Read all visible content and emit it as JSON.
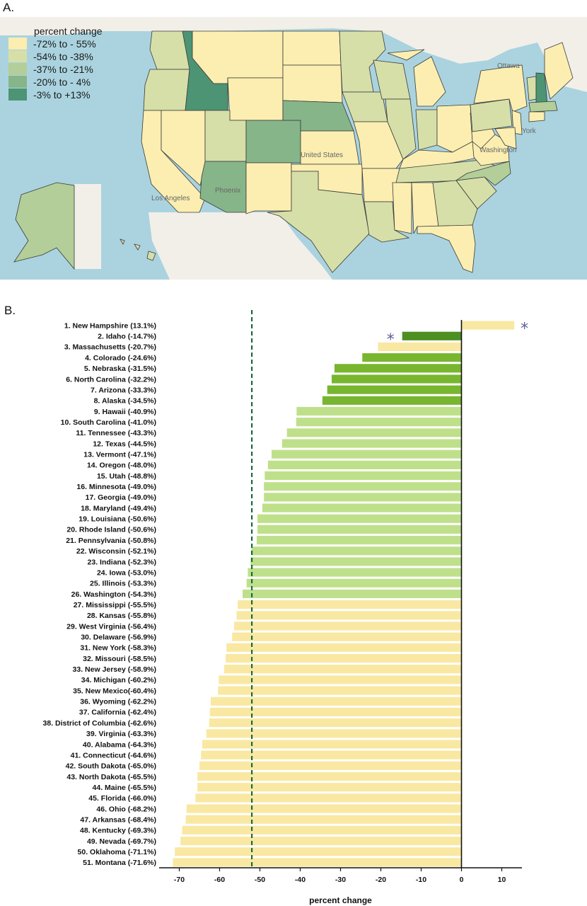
{
  "panels": {
    "a_label": "A.",
    "b_label": "B."
  },
  "map": {
    "legend_title": "percent change",
    "legend": [
      {
        "label": "-72% to - 55%",
        "color": "#fbeeb0"
      },
      {
        "label": "-54% to -38%",
        "color": "#d6dfa8"
      },
      {
        "label": "-37% to -21%",
        "color": "#b3ce98"
      },
      {
        "label": "-20% to - 4%",
        "color": "#86b589"
      },
      {
        "label": "-3% to +13%",
        "color": "#4c9474"
      }
    ],
    "basemap_labels": {
      "ottawa": "Ottawa",
      "new_york": "York",
      "washington": "Washington",
      "united_states": "United States",
      "phoenix": "Phoenix",
      "los_angeles": "Los Angeles"
    },
    "colors": {
      "ocean": "#aad3df",
      "land": "#f2efe9"
    }
  },
  "chart_data": {
    "type": "bar",
    "orientation": "horizontal",
    "categories": [
      "1. New Hampshire (13.1%)",
      "2. Idaho (-14.7%)",
      "3. Massachusetts (-20.7%)",
      "4. Colorado (-24.6%)",
      "5. Nebraska (-31.5%)",
      "6. North Carolina (-32.2%)",
      "7. Arizona (-33.3%)",
      "8. Alaska (-34.5%)",
      "9. Hawaii (-40.9%)",
      "10. South Carolina (-41.0%)",
      "11. Tennessee (-43.3%)",
      "12. Texas (-44.5%)",
      "13. Vermont (-47.1%)",
      "14. Oregon (-48.0%)",
      "15. Utah (-48.8%)",
      "16. Minnesota (-49.0%)",
      "17. Georgia (-49.0%)",
      "18. Maryland (-49.4%)",
      "19. Louisiana (-50.6%)",
      "20. Rhode Island (-50.6%)",
      "21. Pennsylvania (-50.8%)",
      "22. Wisconsin (-52.1%)",
      "23. Indiana (-52.3%)",
      "24. Iowa (-53.0%)",
      "25. Illinois (-53.3%)",
      "26. Washington (-54.3%)",
      "27. Mississippi (-55.5%)",
      "28. Kansas (-55.8%)",
      "29. West Virginia (-56.4%)",
      "30. Delaware (-56.9%)",
      "31. New York (-58.3%)",
      "32. Missouri (-58.5%)",
      "33. New Jersey (-58.9%)",
      "34. Michigan (-60.2%)",
      "35. New Mexico(-60.4%)",
      "36. Wyoming (-62.2%)",
      "37. California (-62.4%)",
      "38. District of Columbia (-62.6%)",
      "39. Virginia (-63.3%)",
      "40. Alabama (-64.3%)",
      "41. Connecticut (-64.6%)",
      "42. South Dakota (-65.0%)",
      "43. North Dakota (-65.5%)",
      "44. Maine (-65.5%)",
      "45. Florida (-66.0%)",
      "46. Ohio (-68.2%)",
      "47. Arkansas (-68.4%)",
      "48. Kentucky (-69.3%)",
      "49. Nevada (-69.7%)",
      "50. Oklahoma (-71.1%)",
      "51. Montana (-71.6%)"
    ],
    "values": [
      13.1,
      -14.7,
      -20.7,
      -24.6,
      -31.5,
      -32.2,
      -33.3,
      -34.5,
      -40.9,
      -41.0,
      -43.3,
      -44.5,
      -47.1,
      -48.0,
      -48.8,
      -49.0,
      -49.0,
      -49.4,
      -50.6,
      -50.6,
      -50.8,
      -52.1,
      -52.3,
      -53.0,
      -53.3,
      -54.3,
      -55.5,
      -55.8,
      -56.4,
      -56.9,
      -58.3,
      -58.5,
      -58.9,
      -60.2,
      -60.4,
      -62.2,
      -62.4,
      -62.6,
      -63.3,
      -64.3,
      -64.6,
      -65.0,
      -65.5,
      -65.5,
      -66.0,
      -68.2,
      -68.4,
      -69.3,
      -69.7,
      -71.1,
      -71.6
    ],
    "xlabel": "percent change",
    "xlim": [
      -75,
      15
    ],
    "xticks": [
      -70,
      -60,
      -50,
      -40,
      -30,
      -20,
      -10,
      0,
      10
    ],
    "reference_line": -52,
    "asterisk_marks": [
      {
        "category_index": 0,
        "side": "right",
        "text": "*"
      },
      {
        "category_index": 1,
        "side": "left",
        "text": "*"
      }
    ],
    "color_bins": [
      {
        "min": -3,
        "max": 13,
        "color": "#0f6b3e"
      },
      {
        "min": -20,
        "max": -4,
        "color": "#4e8f22"
      },
      {
        "min": -37,
        "max": -21,
        "color": "#79b62f"
      },
      {
        "min": -54.5,
        "max": -38,
        "color": "#bfe08a"
      },
      {
        "min": -72,
        "max": -55,
        "color": "#f9e8a2"
      }
    ],
    "reference_line_color": "#1a6b3c",
    "grid": false
  }
}
